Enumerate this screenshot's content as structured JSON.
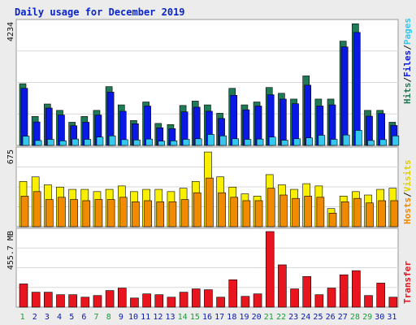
{
  "title": "Daily usage for December 2019",
  "colors": {
    "background": "#ececec",
    "panel": "#ffffff",
    "title": "#0a24c8",
    "hits": "#1f7a55",
    "files": "#0a18e6",
    "pages": "#35c8ee",
    "visits": "#f8f000",
    "hosts": "#f08a00",
    "transfer": "#e8141e",
    "weekend_day": "#1a9c3a",
    "weekday": "#0a18aa",
    "label_slash": "#111111"
  },
  "side_labels": {
    "top": [
      {
        "text": "Hits",
        "color": "#1f7a55"
      },
      {
        "text": "/",
        "color": "#111111"
      },
      {
        "text": "Files",
        "color": "#0a18e6"
      },
      {
        "text": "/",
        "color": "#111111"
      },
      {
        "text": "Pages",
        "color": "#35c8ee"
      }
    ],
    "middle": [
      {
        "text": "Hosts",
        "color": "#f08a00"
      },
      {
        "text": "/",
        "color": "#111111"
      },
      {
        "text": "Visits",
        "color": "#e0d000"
      }
    ],
    "bottom": [
      {
        "text": "Transfer",
        "color": "#e8141e"
      }
    ]
  },
  "chart_data": [
    {
      "type": "bar",
      "panel": "hits-files-pages",
      "ymax_label": "4234",
      "ylim": [
        0,
        4234
      ],
      "categories": [
        "1",
        "2",
        "3",
        "4",
        "5",
        "6",
        "7",
        "8",
        "9",
        "10",
        "11",
        "12",
        "13",
        "14",
        "15",
        "16",
        "17",
        "18",
        "19",
        "20",
        "21",
        "22",
        "23",
        "24",
        "25",
        "26",
        "27",
        "28",
        "29",
        "30",
        "31"
      ],
      "series": [
        {
          "name": "Hits",
          "values": [
            2130,
            1000,
            1430,
            1210,
            800,
            1000,
            1210,
            2030,
            1400,
            860,
            1500,
            760,
            720,
            1380,
            1530,
            1400,
            1110,
            1970,
            1400,
            1500,
            2000,
            1800,
            1600,
            2400,
            1600,
            1600,
            3600,
            4200,
            1210,
            1210,
            800
          ]
        },
        {
          "name": "Files",
          "values": [
            1970,
            810,
            1290,
            1050,
            680,
            800,
            1050,
            1840,
            1180,
            750,
            1360,
            610,
            580,
            1160,
            1320,
            1180,
            930,
            1730,
            1230,
            1360,
            1750,
            1600,
            1440,
            2080,
            1360,
            1400,
            3400,
            3900,
            1010,
            1100,
            690
          ]
        },
        {
          "name": "Pages",
          "values": [
            320,
            170,
            210,
            160,
            220,
            210,
            290,
            330,
            200,
            190,
            220,
            150,
            160,
            210,
            230,
            380,
            330,
            230,
            210,
            220,
            290,
            180,
            230,
            260,
            350,
            210,
            360,
            520,
            170,
            200,
            330
          ]
        }
      ]
    },
    {
      "type": "bar",
      "panel": "visits-hosts",
      "ymax_label": "675",
      "ylim": [
        0,
        675
      ],
      "categories": [
        "1",
        "2",
        "3",
        "4",
        "5",
        "6",
        "7",
        "8",
        "9",
        "10",
        "11",
        "12",
        "13",
        "14",
        "15",
        "16",
        "17",
        "18",
        "19",
        "20",
        "21",
        "22",
        "23",
        "24",
        "25",
        "26",
        "27",
        "28",
        "29",
        "30",
        "31"
      ],
      "series": [
        {
          "name": "Visits",
          "values": [
            400,
            440,
            370,
            350,
            330,
            330,
            310,
            330,
            360,
            310,
            330,
            330,
            310,
            340,
            400,
            660,
            440,
            350,
            290,
            270,
            460,
            370,
            330,
            380,
            360,
            160,
            270,
            310,
            280,
            330,
            340
          ]
        },
        {
          "name": "Hosts",
          "values": [
            270,
            310,
            240,
            260,
            240,
            230,
            240,
            240,
            260,
            220,
            230,
            220,
            220,
            240,
            300,
            430,
            300,
            260,
            230,
            230,
            340,
            280,
            250,
            270,
            260,
            120,
            220,
            250,
            210,
            230,
            230
          ]
        }
      ]
    },
    {
      "type": "bar",
      "panel": "transfer",
      "ymax_label": "455.7 MB",
      "ylim": [
        0,
        455.7
      ],
      "categories": [
        "1",
        "2",
        "3",
        "4",
        "5",
        "6",
        "7",
        "8",
        "9",
        "10",
        "11",
        "12",
        "13",
        "14",
        "15",
        "16",
        "17",
        "18",
        "19",
        "20",
        "21",
        "22",
        "23",
        "24",
        "25",
        "26",
        "27",
        "28",
        "29",
        "30",
        "31"
      ],
      "series": [
        {
          "name": "Transfer",
          "values": [
            140,
            90,
            90,
            75,
            75,
            60,
            70,
            100,
            115,
            55,
            80,
            75,
            60,
            90,
            110,
            105,
            60,
            165,
            65,
            80,
            455.7,
            255,
            110,
            185,
            75,
            115,
            195,
            220,
            70,
            145,
            60
          ]
        }
      ]
    }
  ],
  "weekend_days": [
    "1",
    "7",
    "8",
    "14",
    "15",
    "21",
    "22",
    "28",
    "29"
  ]
}
